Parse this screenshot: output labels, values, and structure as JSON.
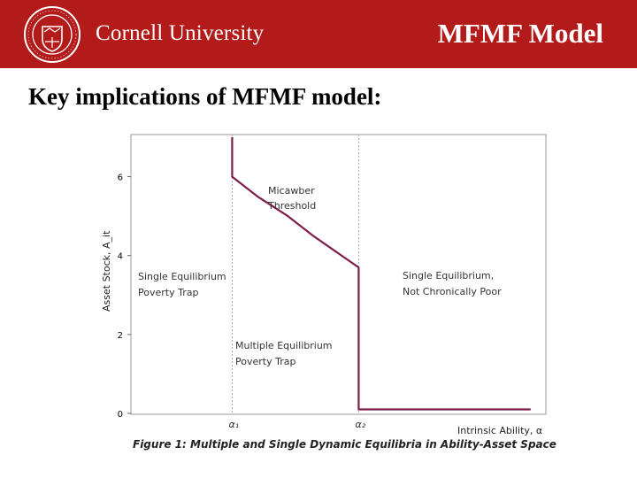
{
  "header": {
    "university": "Cornell University",
    "slide_title": "MFMF Model",
    "brand_color": "#b31b1b",
    "seal_icon": "cornell-seal-icon"
  },
  "subheading": "Key implications of MFMF model:",
  "chart_data": {
    "type": "line",
    "caption": "Figure 1: Multiple and Single Dynamic Equilibria in Ability-Asset Space",
    "xlabel": "Intrinsic Ability, α",
    "ylabel": "Asset Stock, A_it",
    "ylim": [
      0,
      7
    ],
    "yticks": [
      0,
      2,
      4,
      6
    ],
    "xmarkers": [
      {
        "label": "α₁",
        "x": 1.0
      },
      {
        "label": "α₂",
        "x": 2.25
      }
    ],
    "xlim": [
      0,
      4.1
    ],
    "grid": false,
    "series": [
      {
        "name": "Micawber Threshold",
        "color": "#7b1e4b",
        "x": [
          1.0,
          1.0,
          1.25,
          1.55,
          1.8,
          2.25,
          2.25,
          3.95
        ],
        "y": [
          7.0,
          6.0,
          5.5,
          5.0,
          4.5,
          3.7,
          0.1,
          0.1
        ]
      }
    ],
    "annotations": [
      {
        "lines": [
          "Micawber",
          "Threshold"
        ]
      },
      {
        "lines": [
          "Single Equilibrium",
          "Poverty Trap"
        ]
      },
      {
        "lines": [
          "Single Equilibrium,",
          "Not Chronically Poor"
        ]
      },
      {
        "lines": [
          "Multiple Equilibrium",
          "Poverty Trap"
        ]
      }
    ]
  }
}
